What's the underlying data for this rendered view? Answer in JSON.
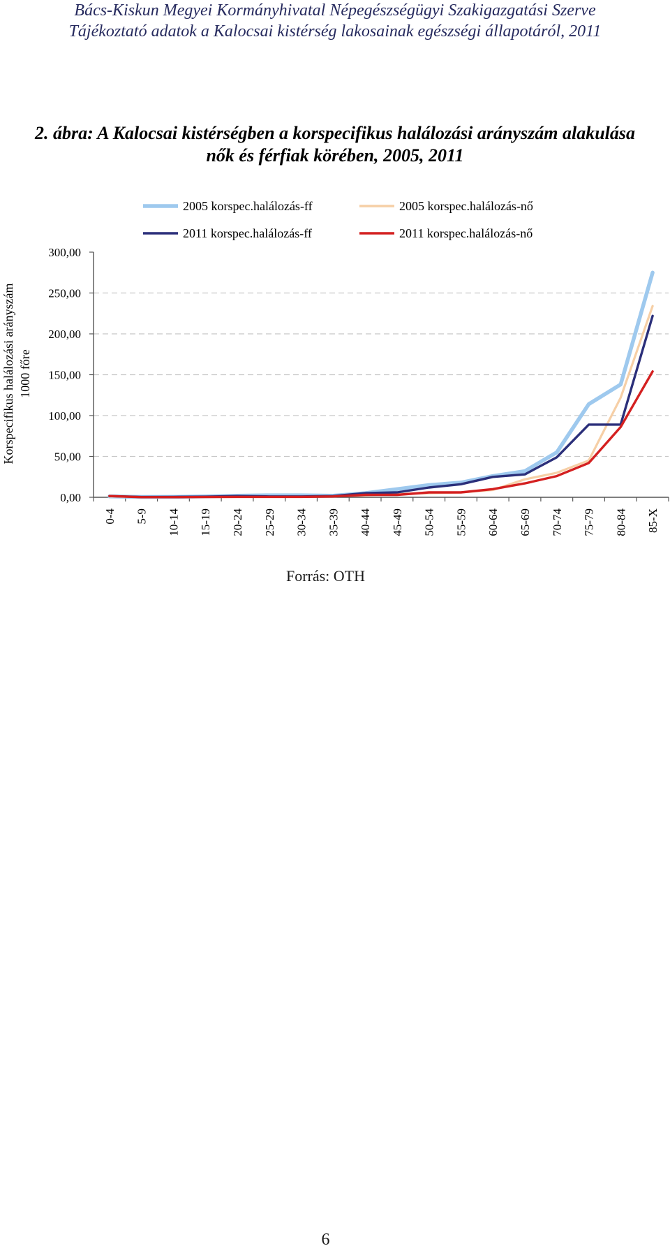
{
  "header": {
    "line1": "Bács-Kiskun Megyei Kormányhivatal Népegészségügyi Szakigazgatási Szerve",
    "line2": "Tájékoztató adatok a Kalocsai kistérség lakosainak egészségi állapotáról, 2011"
  },
  "figure": {
    "title_line1": "2. ábra: A Kalocsai kistérségben a korspecifikus halálozási arányszám alakulása",
    "title_line2": "nők és férfiak körében, 2005, 2011",
    "source": "Forrás: OTH"
  },
  "page_number": "6",
  "chart_data": {
    "type": "line",
    "ylabel_line1": "Korspecifikus halálozási arányszám",
    "ylabel_line2": "1000 főre",
    "ylim": [
      0,
      300
    ],
    "yticks": [
      "0,00",
      "50,00",
      "100,00",
      "150,00",
      "200,00",
      "250,00",
      "300,00"
    ],
    "ytick_values": [
      0,
      50,
      100,
      150,
      200,
      250,
      300
    ],
    "categories": [
      "0-4",
      "5-9",
      "10-14",
      "15-19",
      "20-24",
      "25-29",
      "30-34",
      "35-39",
      "40-44",
      "45-49",
      "50-54",
      "55-59",
      "60-64",
      "65-69",
      "70-74",
      "75-79",
      "80-84",
      "85-X"
    ],
    "series": [
      {
        "name": "2005 korspec.halálozás-ff",
        "color": "#9ec9ee",
        "values": [
          1.0,
          0.4,
          0.5,
          1.0,
          2.0,
          2.5,
          2.5,
          2.0,
          5.0,
          10.0,
          15.0,
          18.0,
          26.0,
          32.0,
          55.0,
          114.0,
          138.0,
          275.0
        ]
      },
      {
        "name": "2005 korspec.halálozás-nő",
        "color": "#f6cfa6",
        "values": [
          1.0,
          0.3,
          0.3,
          0.4,
          0.5,
          0.8,
          1.0,
          1.5,
          2.5,
          4.0,
          5.0,
          6.0,
          9.0,
          22.0,
          30.0,
          45.0,
          122.0,
          234.0
        ]
      },
      {
        "name": "2011 korspec.halálozás-ff",
        "color": "#2b2f7a",
        "values": [
          1.5,
          0.3,
          0.5,
          0.8,
          1.5,
          1.0,
          1.0,
          1.5,
          5.0,
          6.0,
          12.0,
          16.0,
          25.0,
          28.0,
          49.0,
          89.0,
          89.0,
          222.0
        ]
      },
      {
        "name": "2011 korspec.halálozás-nő",
        "color": "#d42020",
        "values": [
          1.5,
          0.2,
          0.2,
          0.3,
          0.5,
          0.5,
          0.5,
          1.0,
          3.0,
          3.0,
          6.0,
          6.0,
          10.0,
          17.0,
          26.0,
          42.0,
          86.0,
          154.0
        ]
      }
    ]
  }
}
